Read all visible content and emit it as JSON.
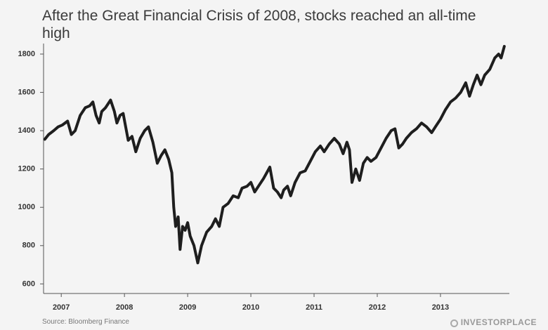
{
  "chart_data": {
    "type": "line",
    "title": "After the Great Financial Crisis of 2008, stocks reached an all-time high",
    "source": "Source: Bloomberg Finance",
    "brand": "INVESTORPLACE",
    "color": "#1e1e1e",
    "grid": false,
    "xlim": [
      2006.72,
      2014.09
    ],
    "xticks": [
      2007,
      2008,
      2009,
      2010,
      2011,
      2012,
      2013
    ],
    "ylim": [
      550,
      1855
    ],
    "yticks": [
      600,
      800,
      1000,
      1200,
      1400,
      1600,
      1800
    ],
    "x": [
      2006.74,
      2006.8,
      2006.88,
      2006.95,
      2007.02,
      2007.1,
      2007.16,
      2007.22,
      2007.3,
      2007.38,
      2007.45,
      2007.5,
      2007.55,
      2007.6,
      2007.64,
      2007.7,
      2007.78,
      2007.84,
      2007.88,
      2007.93,
      2007.98,
      2008.02,
      2008.06,
      2008.12,
      2008.18,
      2008.25,
      2008.32,
      2008.38,
      2008.45,
      2008.52,
      2008.58,
      2008.64,
      2008.7,
      2008.75,
      2008.78,
      2008.81,
      2008.85,
      2008.88,
      2008.92,
      2008.96,
      2009.0,
      2009.04,
      2009.1,
      2009.16,
      2009.22,
      2009.3,
      2009.38,
      2009.44,
      2009.5,
      2009.56,
      2009.64,
      2009.72,
      2009.8,
      2009.86,
      2009.94,
      2010.0,
      2010.06,
      2010.12,
      2010.2,
      2010.3,
      2010.36,
      2010.42,
      2010.48,
      2010.52,
      2010.58,
      2010.63,
      2010.7,
      2010.78,
      2010.86,
      2010.94,
      2011.02,
      2011.1,
      2011.16,
      2011.24,
      2011.32,
      2011.4,
      2011.46,
      2011.52,
      2011.56,
      2011.6,
      2011.66,
      2011.72,
      2011.78,
      2011.84,
      2011.9,
      2011.98,
      2012.06,
      2012.14,
      2012.22,
      2012.28,
      2012.34,
      2012.4,
      2012.46,
      2012.54,
      2012.62,
      2012.7,
      2012.78,
      2012.86,
      2012.92,
      2013.0,
      2013.08,
      2013.16,
      2013.24,
      2013.32,
      2013.4,
      2013.46,
      2013.52,
      2013.58,
      2013.64,
      2013.7,
      2013.78,
      2013.86,
      2013.92,
      2013.96,
      2014.01
    ],
    "values": [
      1355,
      1380,
      1400,
      1420,
      1430,
      1450,
      1380,
      1400,
      1480,
      1520,
      1530,
      1550,
      1480,
      1440,
      1500,
      1520,
      1560,
      1500,
      1440,
      1480,
      1490,
      1420,
      1350,
      1370,
      1290,
      1360,
      1400,
      1420,
      1340,
      1230,
      1270,
      1300,
      1250,
      1180,
      1000,
      900,
      950,
      780,
      900,
      880,
      920,
      850,
      800,
      710,
      800,
      870,
      900,
      940,
      900,
      1000,
      1020,
      1060,
      1050,
      1100,
      1110,
      1130,
      1080,
      1110,
      1150,
      1210,
      1100,
      1080,
      1050,
      1090,
      1110,
      1060,
      1130,
      1180,
      1190,
      1240,
      1290,
      1320,
      1290,
      1330,
      1360,
      1330,
      1280,
      1340,
      1300,
      1130,
      1200,
      1140,
      1230,
      1260,
      1240,
      1260,
      1310,
      1360,
      1400,
      1410,
      1310,
      1330,
      1360,
      1390,
      1410,
      1440,
      1420,
      1390,
      1420,
      1460,
      1510,
      1550,
      1570,
      1600,
      1650,
      1580,
      1640,
      1690,
      1640,
      1690,
      1720,
      1780,
      1800,
      1780,
      1840
    ]
  }
}
